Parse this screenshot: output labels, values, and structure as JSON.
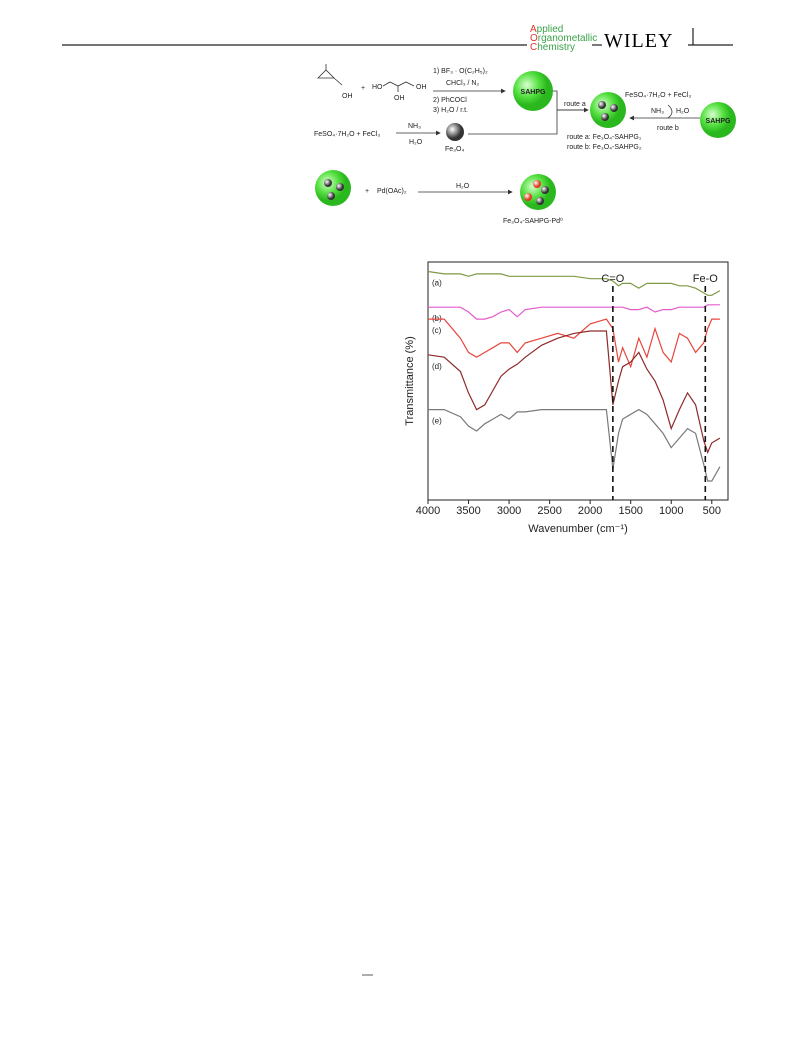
{
  "header": {
    "journal": [
      "Applied",
      "Organometallic",
      "Chemistry"
    ],
    "publisher": "WILEY"
  },
  "scheme": {
    "oh_epoxide": "OH",
    "plus_1": "+",
    "glycerol_ho": "HO",
    "glycerol_oh_right": "OH",
    "glycerol_oh_bottom": "OH",
    "step_1": "1) BF₃ · O(C₂H₅)₂",
    "step_1_cond": "CHCl₃ / N₂",
    "step_2": "2) PhCOCl",
    "step_3": "3) H₂O / r.t.",
    "sahpg_1": "SAHPG",
    "route_a": "route a",
    "iron_salts_1": "FeSO₄·7H₂O  +  FeCl₃",
    "nh3_1": "NH₃",
    "h2o_1": "H₂O",
    "fe3o4": "Fe₃O₄",
    "iron_salts_2": "FeSO₄·7H₂O  +  FeCl₃",
    "nh3_2": "NH₃",
    "h2o_2": "H₂O",
    "route_b": "route b",
    "sahpg_2": "SAHPG",
    "route_a_product": "route a: Fe₃O₄-SAHPG₁",
    "route_b_product": "route b: Fe₃O₄-SAHPG₂",
    "plus_2": "+",
    "pd_salt": "Pd(OAc)₂",
    "h2o_3": "H₂O",
    "final_product": "Fe₃O₄-SAHPG-Pd⁰"
  },
  "chart_data": {
    "type": "line",
    "xlabel": "Wavenumber (cm⁻¹)",
    "ylabel": "Transmittance (%)",
    "x": [
      4000,
      3800,
      3600,
      3500,
      3400,
      3300,
      3200,
      3100,
      3000,
      2900,
      2800,
      2600,
      2400,
      2200,
      2000,
      1800,
      1720,
      1650,
      1600,
      1500,
      1400,
      1300,
      1200,
      1100,
      1000,
      900,
      800,
      700,
      600,
      550,
      500,
      400
    ],
    "xlim": [
      4000,
      300
    ],
    "xticks": [
      4000,
      3500,
      3000,
      2500,
      2000,
      1500,
      1000,
      500
    ],
    "ylim": [
      0,
      100
    ],
    "series": [
      {
        "name": "(a)",
        "color": "#7f9a45",
        "values": [
          96,
          95,
          95,
          94,
          95,
          95,
          95,
          95,
          94,
          94,
          94,
          94,
          94,
          94,
          93,
          93,
          92,
          90,
          91,
          91,
          89,
          91,
          91,
          91,
          91,
          90,
          90,
          89,
          87,
          86,
          86,
          88
        ]
      },
      {
        "name": "(b)",
        "color": "#e45ccb",
        "values": [
          81,
          81,
          81,
          79,
          76,
          76,
          77,
          79,
          80,
          77,
          80,
          81,
          81,
          81,
          81,
          81,
          81,
          81,
          81,
          80,
          80,
          81,
          79,
          80,
          80,
          81,
          81,
          81,
          81,
          82,
          82,
          82
        ]
      },
      {
        "name": "(c)",
        "color": "#e8453c",
        "values": [
          76,
          76,
          68,
          62,
          60,
          62,
          64,
          66,
          66,
          62,
          66,
          68,
          70,
          68,
          74,
          76,
          72,
          58,
          64,
          56,
          68,
          60,
          72,
          62,
          58,
          70,
          68,
          62,
          66,
          72,
          76,
          76
        ]
      },
      {
        "name": "(d)",
        "color": "#8e2a2a",
        "values": [
          61,
          60,
          54,
          45,
          38,
          40,
          46,
          52,
          55,
          57,
          60,
          65,
          68,
          70,
          71,
          71,
          40,
          50,
          56,
          58,
          62,
          55,
          50,
          42,
          30,
          38,
          45,
          40,
          25,
          20,
          24,
          26
        ]
      },
      {
        "name": "(e)",
        "color": "#7a7a7a",
        "values": [
          38,
          38,
          35,
          31,
          29,
          32,
          34,
          36,
          34,
          37,
          37,
          38,
          38,
          38,
          38,
          38,
          13,
          28,
          34,
          36,
          38,
          36,
          32,
          28,
          22,
          26,
          30,
          28,
          15,
          8,
          8,
          14
        ]
      }
    ],
    "annotations": [
      {
        "label": "C=O",
        "x": 1720
      },
      {
        "label": "Fe-O",
        "x": 580
      }
    ]
  }
}
